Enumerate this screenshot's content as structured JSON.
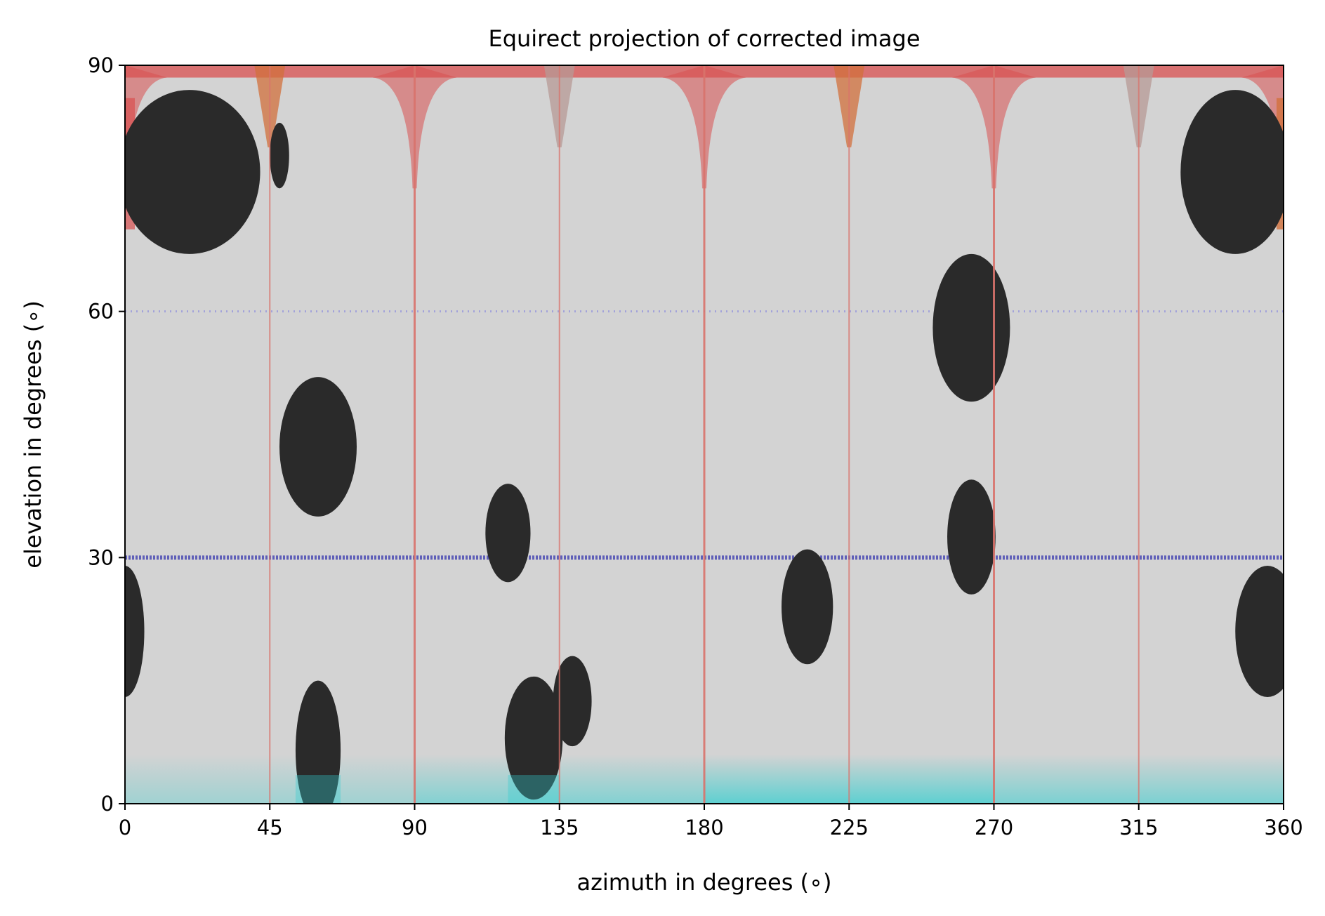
{
  "chart_data": {
    "type": "heatmap",
    "title": "Equirect projection of corrected image",
    "xlabel": "azimuth in degrees (∘)",
    "ylabel": "elevation in degrees (∘)",
    "xlim": [
      0,
      360
    ],
    "ylim": [
      0,
      90
    ],
    "xticks": [
      0,
      45,
      90,
      135,
      180,
      225,
      270,
      315,
      360
    ],
    "yticks": [
      0,
      30,
      60,
      90
    ],
    "grid": false,
    "background_color": "#d3d3d3",
    "blobs": [
      {
        "az": 20,
        "el": 77,
        "raz": 22,
        "rel": 10
      },
      {
        "az": 48,
        "el": 79,
        "raz": 3,
        "rel": 4
      },
      {
        "az": 345,
        "el": 77,
        "raz": 17,
        "rel": 10
      },
      {
        "az": 263,
        "el": 58,
        "raz": 12,
        "rel": 9
      },
      {
        "az": 60,
        "el": 43.5,
        "raz": 12,
        "rel": 8.5
      },
      {
        "az": 119,
        "el": 33,
        "raz": 7,
        "rel": 6
      },
      {
        "az": 263,
        "el": 32.5,
        "raz": 7.5,
        "rel": 7
      },
      {
        "az": 212,
        "el": 24,
        "raz": 8,
        "rel": 7
      },
      {
        "az": 355,
        "el": 21,
        "raz": 10,
        "rel": 8
      },
      {
        "az": 0,
        "el": 21,
        "raz": 6,
        "rel": 8
      },
      {
        "az": 60,
        "el": 6.5,
        "raz": 7,
        "rel": 8.5
      },
      {
        "az": 127,
        "el": 8,
        "raz": 9,
        "rel": 7.5
      },
      {
        "az": 139,
        "el": 12.5,
        "raz": 6,
        "rel": 5.5
      }
    ],
    "vertical_lines_az": [
      45,
      90,
      135,
      180,
      225,
      270,
      315
    ],
    "horizontal_bands_el": [
      30,
      60
    ],
    "colors": {
      "blob": "#2a2a2a",
      "seam": "#d9736c",
      "cap_red": "#d95050",
      "cap_orange": "#d2703c",
      "band_blue": "#4b4bb4",
      "band_faint": "#9696dc",
      "cyan": "#30cfd0"
    }
  }
}
